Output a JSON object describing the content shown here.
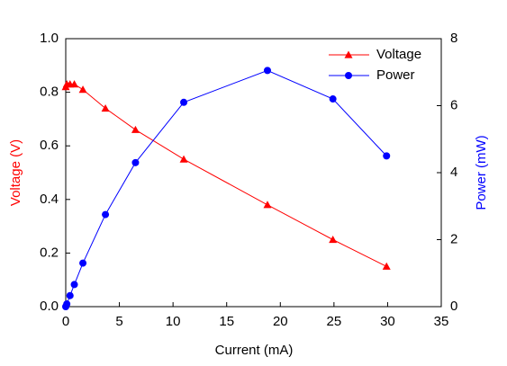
{
  "chart_data": {
    "type": "line",
    "xlabel": "Current (mA)",
    "ylabel": "Voltage (V)",
    "y2label": "Power (mW)",
    "ylabel_color": "#ff0000",
    "y2label_color": "#0000ff",
    "x": [
      0,
      0.1,
      0.4,
      0.8,
      1.6,
      3.7,
      6.5,
      11.0,
      18.8,
      24.9,
      29.9
    ],
    "series": [
      {
        "name": "Voltage",
        "color": "#ff0000",
        "marker": "triangle",
        "axis": "y",
        "values": [
          0.82,
          0.83,
          0.83,
          0.83,
          0.81,
          0.74,
          0.66,
          0.55,
          0.38,
          0.25,
          0.15
        ]
      },
      {
        "name": "Power",
        "color": "#0000ff",
        "marker": "circle",
        "axis": "y2",
        "values": [
          0,
          0.08,
          0.33,
          0.66,
          1.3,
          2.75,
          4.3,
          6.1,
          7.05,
          6.2,
          4.5
        ]
      }
    ],
    "xlim": [
      0,
      35
    ],
    "xticks": [
      0,
      5,
      10,
      15,
      20,
      25,
      30,
      35
    ],
    "ylim": [
      0,
      1
    ],
    "yticks": [
      {
        "value": 0,
        "label": "0.0"
      },
      0.2,
      0.4,
      0.6,
      0.8,
      {
        "value": 1,
        "label": "1.0"
      }
    ],
    "y2lim": [
      0,
      8
    ],
    "y2ticks": [
      0,
      2,
      4,
      6,
      8
    ],
    "legend": "upper-right"
  }
}
